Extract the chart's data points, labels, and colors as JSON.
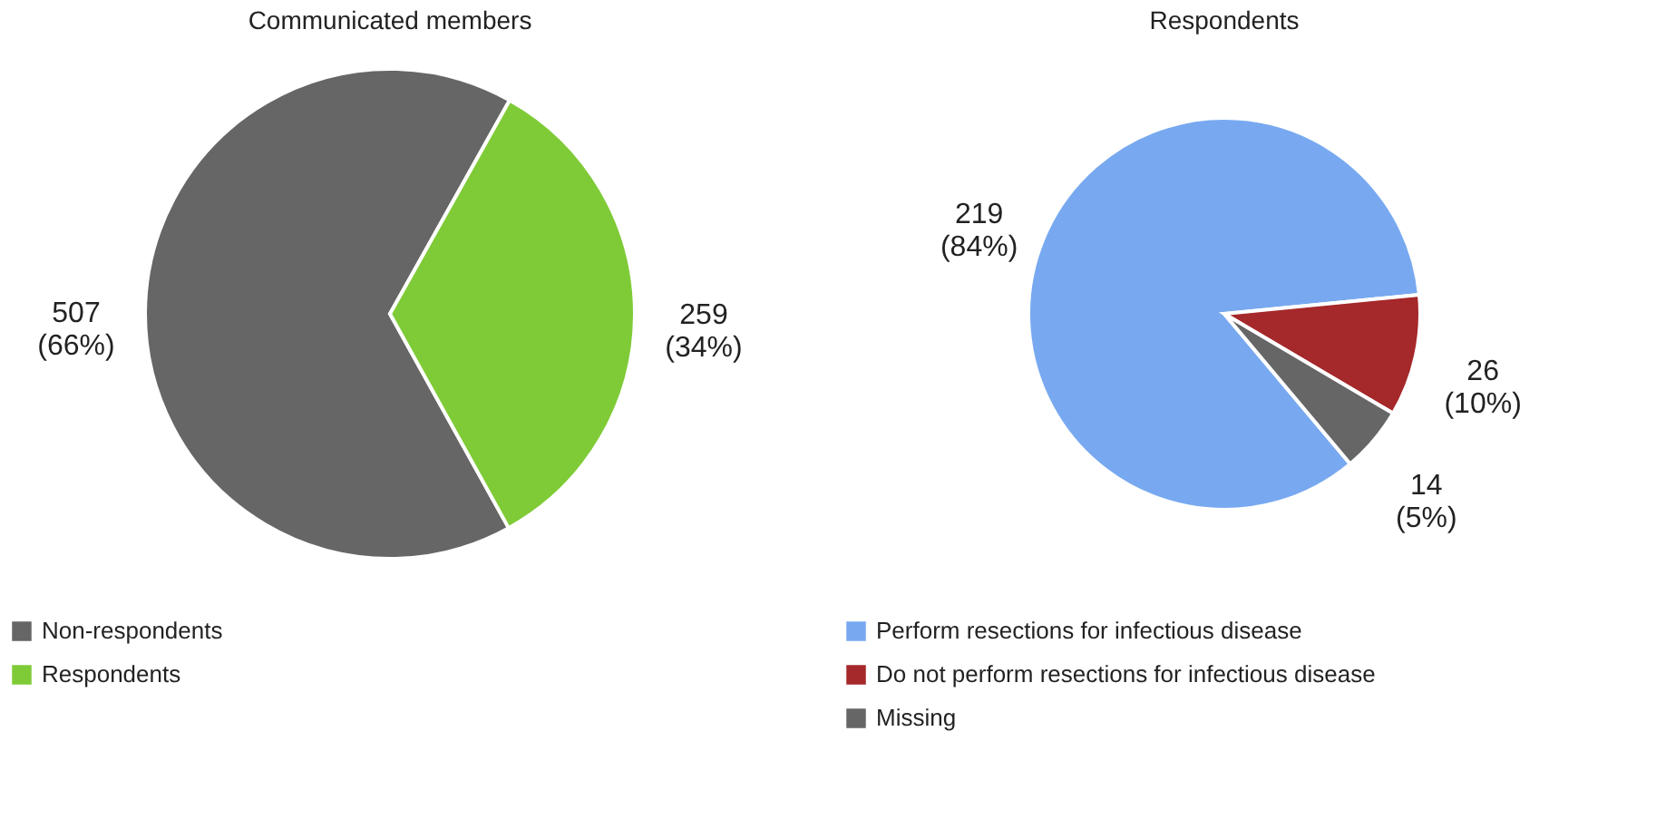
{
  "chart_data": [
    {
      "type": "pie",
      "title": "Communicated members",
      "categories": [
        "Non-respondents",
        "Respondents"
      ],
      "values": [
        507,
        259
      ],
      "colors": [
        "#666666",
        "#7fcb37"
      ],
      "value_labels": [
        "507\n(66%)",
        "259\n(34%)"
      ],
      "legend": "bottom"
    },
    {
      "type": "pie",
      "title": "Respondents",
      "categories": [
        "Perform resections for infectious disease",
        "Do not perform resections for infectious disease",
        "Missing"
      ],
      "values": [
        219,
        26,
        14
      ],
      "colors": [
        "#78a9f0",
        "#a5282a",
        "#666666"
      ],
      "value_labels": [
        "219\n(84%)",
        "26\n(10%)",
        "14\n(5%)"
      ],
      "legend": "bottom"
    }
  ]
}
